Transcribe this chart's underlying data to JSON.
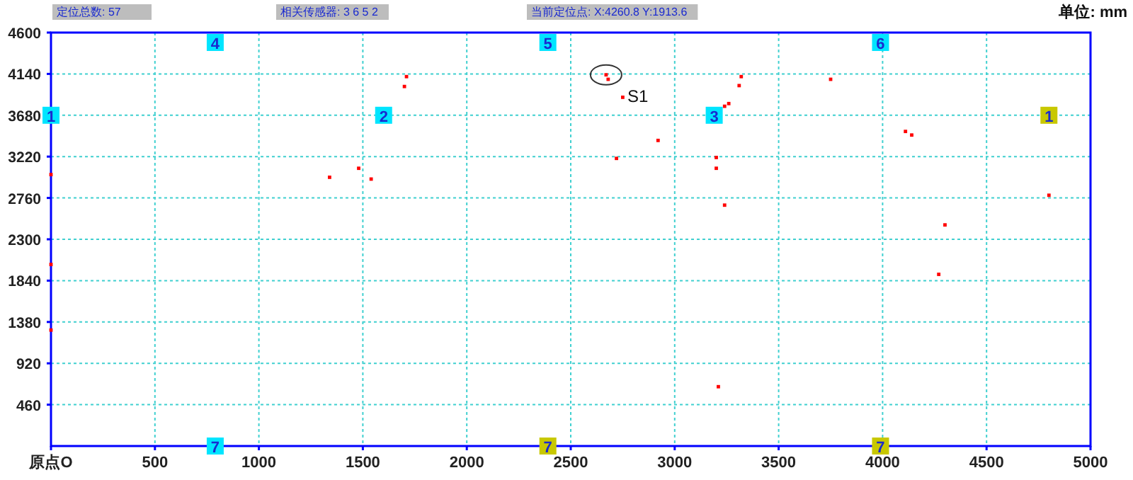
{
  "chart_data": {
    "type": "scatter",
    "annotations": [
      "定位总数: 57",
      "相关传感器: 3 6 5 2",
      "当前定位点: X:4260.8  Y:1913.6",
      "单位: mm",
      {
        "text": "S1",
        "x": 2670,
        "y": 4130
      },
      {
        "text": "1",
        "x": 0,
        "y": 3680
      },
      {
        "text": "2",
        "x": 1600,
        "y": 3680
      },
      {
        "text": "3",
        "x": 3190,
        "y": 3680
      },
      {
        "text": "1",
        "x": 4800,
        "y": 3680
      },
      {
        "text": "4",
        "x": 790,
        "y": 4490
      },
      {
        "text": "5",
        "x": 2390,
        "y": 4490
      },
      {
        "text": "6",
        "x": 3990,
        "y": 4490
      },
      {
        "text": "7",
        "x": 790,
        "y": 0
      },
      {
        "text": "7",
        "x": 2390,
        "y": 0
      },
      {
        "text": "7",
        "x": 3990,
        "y": 0
      }
    ],
    "xlim": [
      0,
      5000
    ],
    "ylim": [
      0,
      4600
    ],
    "xticks": [
      {
        "value": 0,
        "label": "原点O"
      },
      500,
      1000,
      1500,
      2000,
      2500,
      3000,
      3500,
      4000,
      4500,
      5000
    ],
    "yticks": [
      460,
      920,
      1380,
      1840,
      2300,
      2760,
      3220,
      3680,
      4140,
      4600
    ],
    "grid": true,
    "series": [
      {
        "type": "scatter",
        "marker": "square",
        "color": "#ff0000",
        "x": [
          1710,
          1700,
          1340,
          1480,
          1540,
          0,
          0,
          0,
          2670,
          2680,
          2750,
          3320,
          3310,
          3260,
          3240,
          3750,
          2920,
          2720,
          3200,
          3200,
          3240,
          4110,
          4140,
          4800,
          4300,
          4270,
          3210
        ],
        "values": [
          4110,
          4000,
          2990,
          3090,
          2970,
          3020,
          2020,
          1290,
          4130,
          4080,
          3880,
          4110,
          4010,
          3810,
          3780,
          4080,
          3400,
          3200,
          3210,
          3090,
          2680,
          3500,
          3460,
          2790,
          2460,
          1910,
          660
        ]
      },
      {
        "type": "scatter",
        "marker": "square",
        "x": [
          0,
          1600,
          3190,
          4800,
          790,
          2390,
          3990,
          790,
          2390,
          3990
        ],
        "values": [
          3680,
          3680,
          3680,
          3680,
          4490,
          4490,
          4490,
          0,
          0,
          0
        ],
        "colors": [
          "#00e5ff",
          "#00e5ff",
          "#00e5ff",
          "#c8c800",
          "#00e5ff",
          "#00e5ff",
          "#00e5ff",
          "#00e5ff",
          "#c8c800",
          "#c8c800"
        ]
      }
    ]
  }
}
